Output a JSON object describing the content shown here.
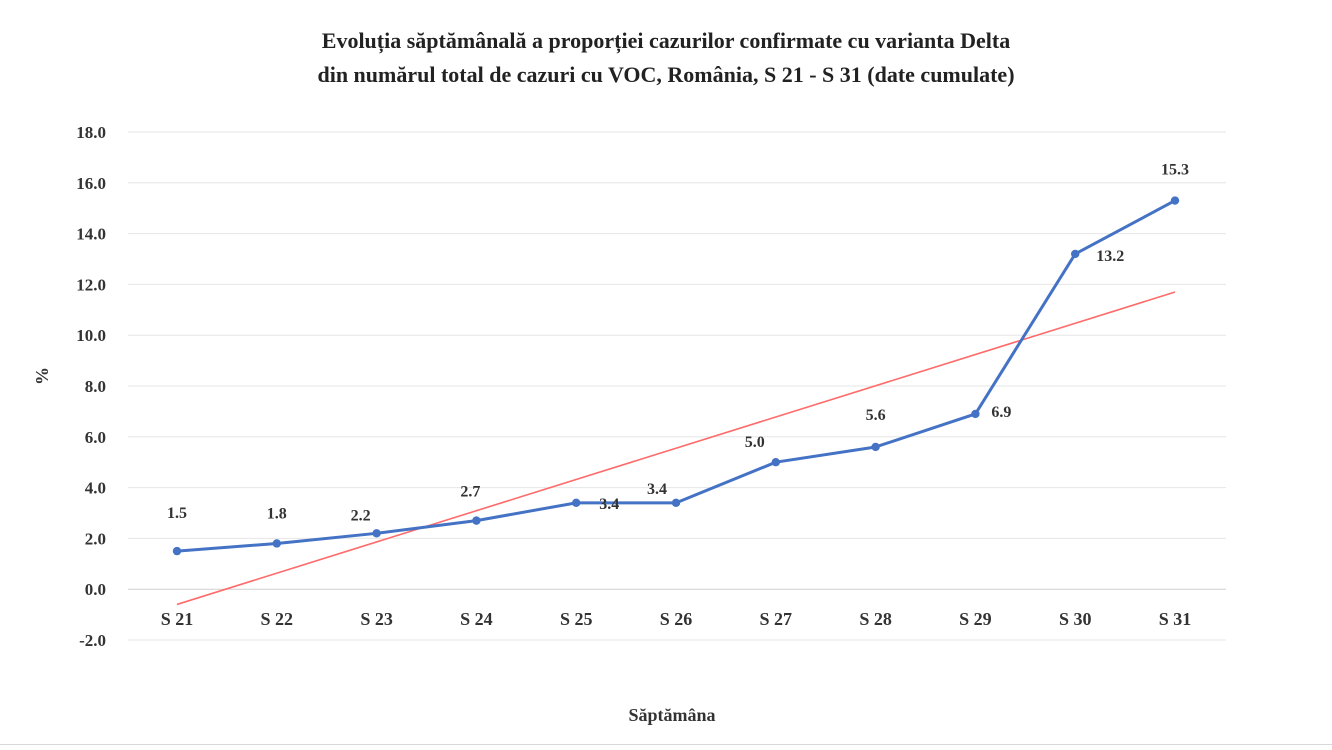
{
  "chart_data": {
    "type": "line",
    "title_line1": "Evoluția săptămânală a proporției cazurilor confirmate cu varianta Delta",
    "title_line2": "din numărul total de cazuri cu VOC, România, S 21 - S 31 (date cumulate)",
    "xlabel": "Săptămâna",
    "ylabel": "%",
    "categories": [
      "S 21",
      "S 22",
      "S 23",
      "S 24",
      "S 25",
      "S 26",
      "S 27",
      "S 28",
      "S 29",
      "S 30",
      "S 31"
    ],
    "series": [
      {
        "values": [
          1.5,
          1.8,
          2.2,
          2.7,
          3.4,
          3.4,
          5.0,
          5.6,
          6.9,
          13.2,
          15.3
        ],
        "labels": [
          "1.5",
          "1.8",
          "2.2",
          "2.7",
          "3.4",
          "3.4",
          "5.0",
          "5.6",
          "6.9",
          "13.2",
          "15.3"
        ],
        "color": "#4472c4"
      }
    ],
    "trendline": {
      "type": "linear",
      "start": -0.6,
      "end": 11.7,
      "color": "#ff6b6b"
    },
    "ylim": [
      -2.0,
      18.0
    ],
    "yticks": [
      "-2.0",
      "0.0",
      "2.0",
      "4.0",
      "6.0",
      "8.0",
      "10.0",
      "12.0",
      "14.0",
      "16.0",
      "18.0"
    ],
    "ytick_values": [
      -2,
      0,
      2,
      4,
      6,
      8,
      10,
      12,
      14,
      16,
      18
    ],
    "grid": true,
    "legend": "none"
  }
}
